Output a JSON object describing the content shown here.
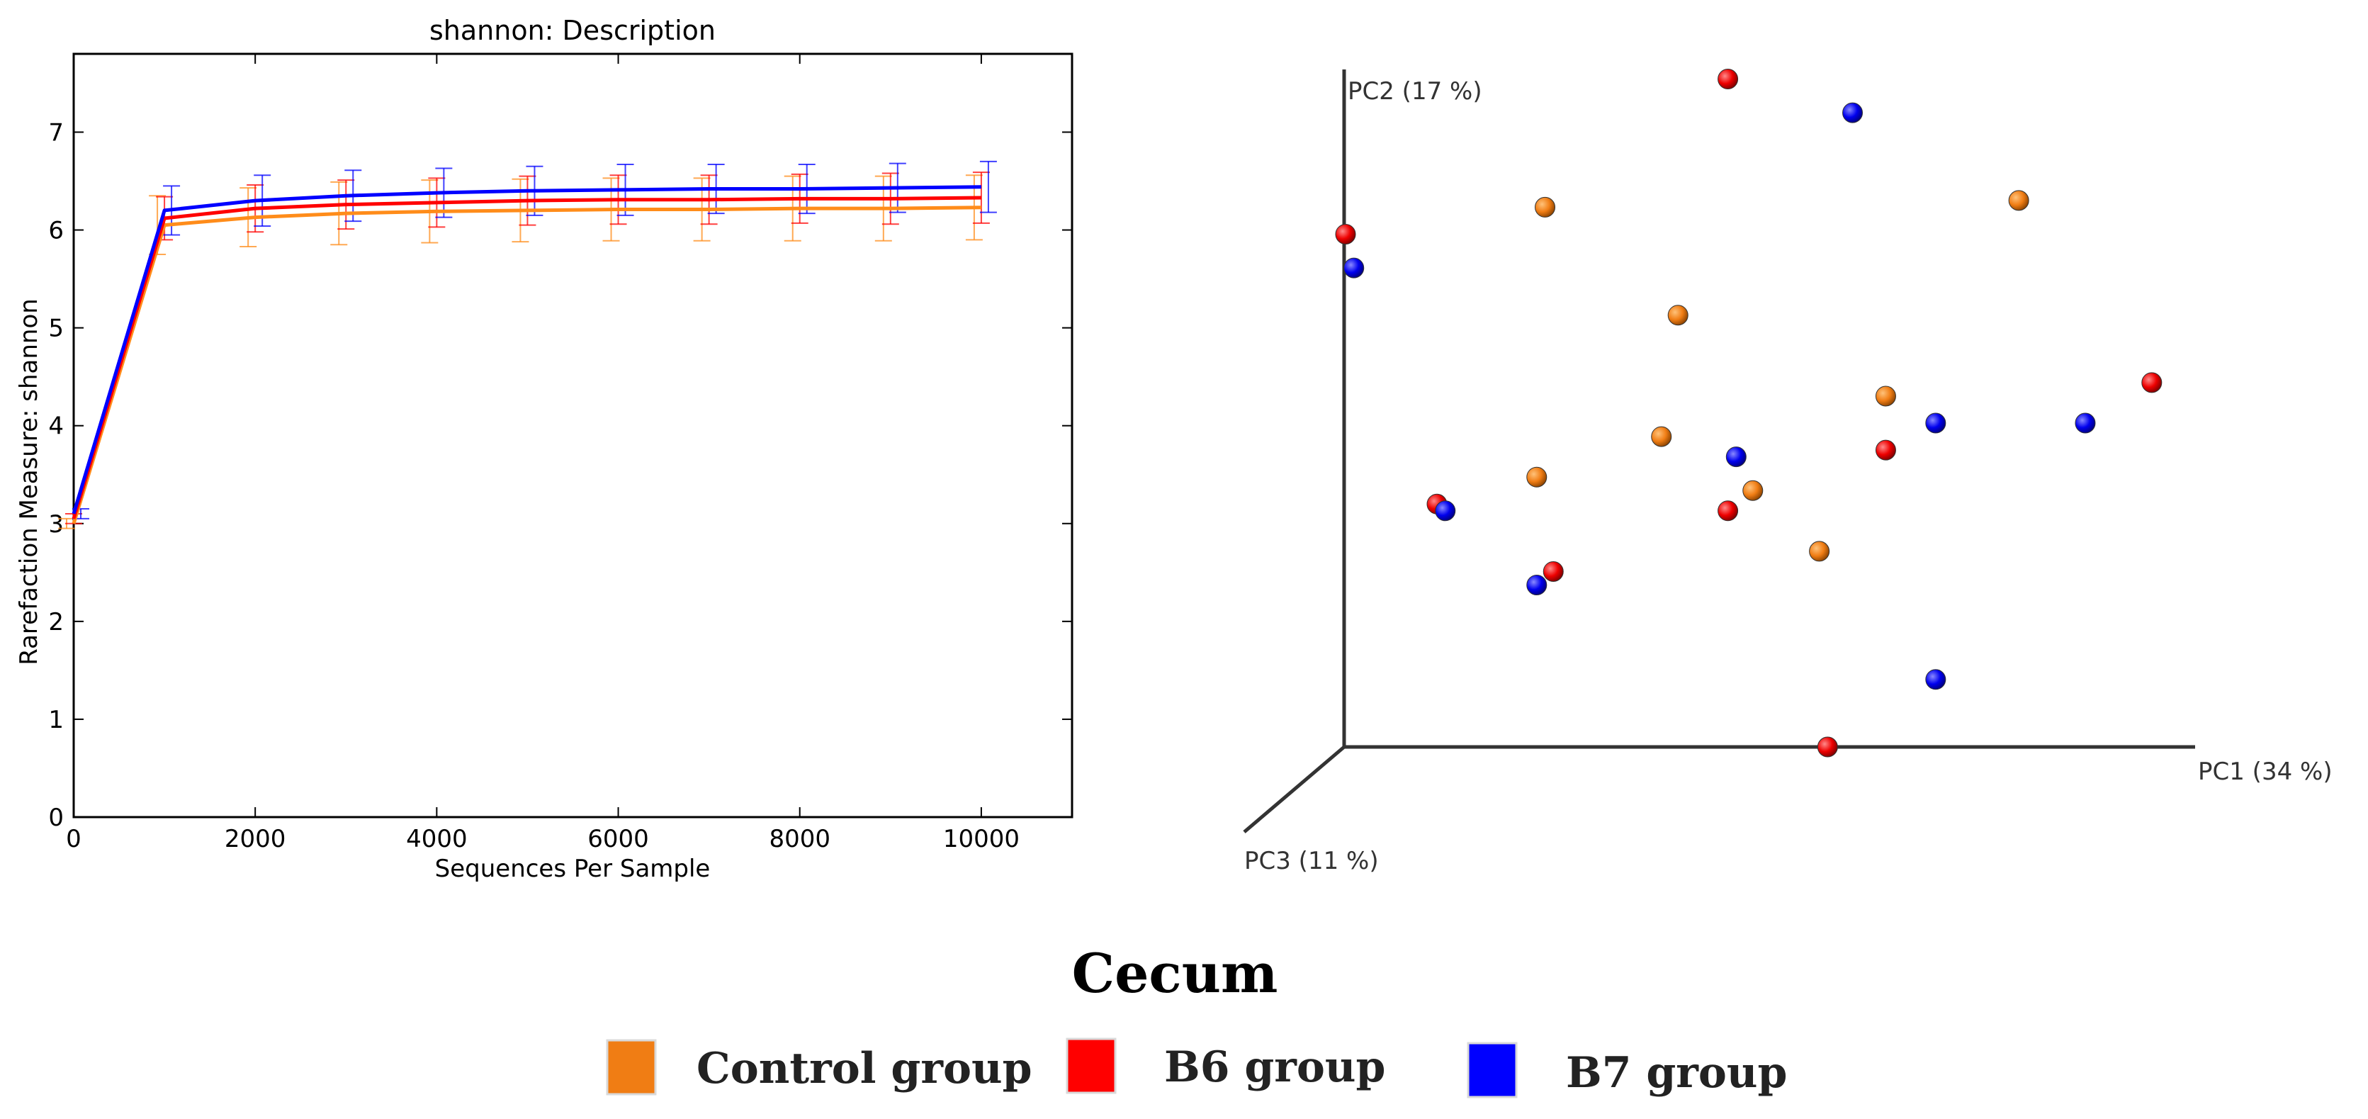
{
  "caption": "Cecum",
  "legend": [
    {
      "label": "Control group",
      "color": "#f07d14"
    },
    {
      "label": "B6 group",
      "color": "#ff0000"
    },
    {
      "label": "B7 group",
      "color": "#0000ff"
    }
  ],
  "chart_data": [
    {
      "type": "line",
      "title": "shannon: Description",
      "xlabel": "Sequences Per Sample",
      "ylabel": "Rarefaction Measure: shannon",
      "xlim": [
        0,
        11000
      ],
      "ylim": [
        0,
        7.8
      ],
      "xticks": [
        0,
        2000,
        4000,
        6000,
        8000,
        10000
      ],
      "yticks": [
        0,
        1,
        2,
        3,
        4,
        5,
        6,
        7
      ],
      "x": [
        0,
        1000,
        2000,
        3000,
        4000,
        5000,
        6000,
        7000,
        8000,
        9000,
        10000
      ],
      "series": [
        {
          "name": "Control group",
          "color": "#ff8c1a",
          "values": [
            3.0,
            6.05,
            6.13,
            6.17,
            6.19,
            6.2,
            6.21,
            6.21,
            6.22,
            6.22,
            6.23
          ],
          "error": [
            0.05,
            0.3,
            0.3,
            0.32,
            0.32,
            0.32,
            0.32,
            0.32,
            0.33,
            0.33,
            0.33
          ]
        },
        {
          "name": "B6 group",
          "color": "#ff0000",
          "values": [
            3.05,
            6.12,
            6.22,
            6.26,
            6.28,
            6.3,
            6.31,
            6.31,
            6.32,
            6.32,
            6.33
          ],
          "error": [
            0.05,
            0.22,
            0.24,
            0.25,
            0.25,
            0.25,
            0.25,
            0.25,
            0.25,
            0.26,
            0.26
          ]
        },
        {
          "name": "B7 group",
          "color": "#0000ff",
          "values": [
            3.1,
            6.2,
            6.3,
            6.35,
            6.38,
            6.4,
            6.41,
            6.42,
            6.42,
            6.43,
            6.44
          ],
          "error": [
            0.05,
            0.25,
            0.26,
            0.26,
            0.25,
            0.25,
            0.26,
            0.25,
            0.25,
            0.25,
            0.26
          ]
        }
      ]
    },
    {
      "type": "scatter",
      "title": "",
      "axes": {
        "pc1": "PC1 (34 %)",
        "pc2": "PC2 (17 %)",
        "pc3": "PC3 (11 %)"
      },
      "note": "3D PCoA projection; values are estimated positions in the displayed PC1/PC2 plane (0–1 of axis length)",
      "series": [
        {
          "name": "Control group",
          "color": "#f07d14",
          "points": [
            [
              0.24,
              0.8
            ],
            [
              0.81,
              0.81
            ],
            [
              0.4,
              0.64
            ],
            [
              0.65,
              0.52
            ],
            [
              0.38,
              0.46
            ],
            [
              0.23,
              0.4
            ],
            [
              0.49,
              0.38
            ],
            [
              0.57,
              0.29
            ]
          ]
        },
        {
          "name": "B6 group",
          "color": "#ff0000",
          "points": [
            [
              0.46,
              0.99
            ],
            [
              0.0,
              0.76
            ],
            [
              0.97,
              0.54
            ],
            [
              0.65,
              0.44
            ],
            [
              0.11,
              0.36
            ],
            [
              0.46,
              0.35
            ],
            [
              0.25,
              0.26
            ],
            [
              0.58,
              0.0
            ]
          ]
        },
        {
          "name": "B7 group",
          "color": "#0000ff",
          "points": [
            [
              0.61,
              0.94
            ],
            [
              0.01,
              0.71
            ],
            [
              0.71,
              0.48
            ],
            [
              0.89,
              0.48
            ],
            [
              0.47,
              0.43
            ],
            [
              0.12,
              0.35
            ],
            [
              0.23,
              0.24
            ],
            [
              0.71,
              0.1
            ]
          ]
        }
      ]
    }
  ]
}
